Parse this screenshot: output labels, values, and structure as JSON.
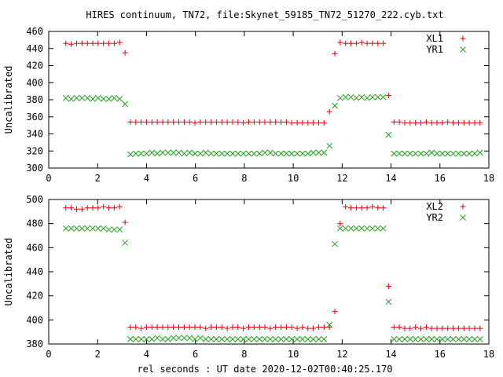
{
  "title": "HIRES continuum, TN72, file:Skynet_59185_TN72_51270_222.cyb.txt",
  "xlabel": "rel seconds : UT date 2020-12-02T00:40:25.170",
  "colors": {
    "series_a": "#e8000b",
    "series_b": "#1aa31a"
  },
  "chart_data": [
    {
      "type": "scatter",
      "ylabel": "Uncalibrated",
      "xlim": [
        0,
        18
      ],
      "ylim": [
        300,
        460
      ],
      "xticks": [
        "0",
        "2",
        "4",
        "6",
        "8",
        "10",
        "12",
        "14",
        "16",
        "18"
      ],
      "yticks": [
        "300",
        "320",
        "340",
        "360",
        "380",
        "400",
        "420",
        "440",
        "460"
      ],
      "legend_position": "top-right",
      "grid": false,
      "x": [
        0.7,
        0.92,
        1.14,
        1.36,
        1.58,
        1.8,
        2.02,
        2.24,
        2.46,
        2.68,
        2.9,
        3.12,
        3.34,
        3.56,
        3.78,
        4.0,
        4.22,
        4.44,
        4.66,
        4.88,
        5.1,
        5.32,
        5.54,
        5.76,
        5.98,
        6.2,
        6.42,
        6.64,
        6.86,
        7.08,
        7.3,
        7.52,
        7.74,
        7.96,
        8.18,
        8.4,
        8.62,
        8.84,
        9.06,
        9.28,
        9.5,
        9.72,
        9.94,
        10.16,
        10.38,
        10.6,
        10.82,
        11.04,
        11.26,
        11.48,
        11.7,
        11.92,
        12.14,
        12.36,
        12.58,
        12.8,
        13.02,
        13.24,
        13.46,
        13.68,
        13.9,
        14.12,
        14.34,
        14.56,
        14.78,
        15.0,
        15.22,
        15.44,
        15.66,
        15.88,
        16.1,
        16.32,
        16.54,
        16.76,
        16.98,
        17.2,
        17.42,
        17.64
      ],
      "series": [
        {
          "name": "XL1",
          "marker": "+",
          "values": [
            446,
            445,
            446,
            446,
            446,
            446,
            446,
            446,
            446,
            446,
            447,
            435,
            354,
            354,
            354,
            354,
            354,
            354,
            354,
            354,
            354,
            354,
            354,
            354,
            353,
            354,
            354,
            354,
            354,
            354,
            354,
            354,
            354,
            353,
            354,
            354,
            354,
            354,
            354,
            354,
            354,
            354,
            353,
            353,
            353,
            353,
            353,
            353,
            353,
            366,
            434,
            447,
            446,
            446,
            446,
            447,
            446,
            446,
            446,
            446,
            385,
            354,
            354,
            353,
            353,
            353,
            353,
            354,
            353,
            353,
            353,
            354,
            353,
            353,
            353,
            353,
            353,
            353
          ]
        },
        {
          "name": "YR1",
          "marker": "x",
          "values": [
            382,
            381,
            382,
            382,
            382,
            381,
            382,
            381,
            381,
            382,
            381,
            375,
            316,
            317,
            317,
            317,
            318,
            317,
            318,
            318,
            318,
            318,
            317,
            318,
            317,
            317,
            318,
            317,
            317,
            317,
            317,
            317,
            317,
            317,
            317,
            317,
            317,
            318,
            318,
            317,
            317,
            317,
            317,
            317,
            317,
            317,
            318,
            318,
            318,
            326,
            373,
            382,
            383,
            383,
            382,
            383,
            382,
            383,
            383,
            383,
            339,
            317,
            317,
            317,
            317,
            317,
            317,
            317,
            318,
            317,
            317,
            317,
            317,
            317,
            317,
            317,
            317,
            318
          ]
        }
      ]
    },
    {
      "type": "scatter",
      "ylabel": "Uncalibrated",
      "xlim": [
        0,
        18
      ],
      "ylim": [
        380,
        500
      ],
      "xticks": [
        "0",
        "2",
        "4",
        "6",
        "8",
        "10",
        "12",
        "14",
        "16",
        "18"
      ],
      "yticks": [
        "380",
        "400",
        "420",
        "440",
        "460",
        "480",
        "500"
      ],
      "legend_position": "top-right",
      "grid": false,
      "x": [
        0.7,
        0.92,
        1.14,
        1.36,
        1.58,
        1.8,
        2.02,
        2.24,
        2.46,
        2.68,
        2.9,
        3.12,
        3.34,
        3.56,
        3.78,
        4.0,
        4.22,
        4.44,
        4.66,
        4.88,
        5.1,
        5.32,
        5.54,
        5.76,
        5.98,
        6.2,
        6.42,
        6.64,
        6.86,
        7.08,
        7.3,
        7.52,
        7.74,
        7.96,
        8.18,
        8.4,
        8.62,
        8.84,
        9.06,
        9.28,
        9.5,
        9.72,
        9.94,
        10.16,
        10.38,
        10.6,
        10.82,
        11.04,
        11.26,
        11.48,
        11.7,
        11.92,
        12.14,
        12.36,
        12.58,
        12.8,
        13.02,
        13.24,
        13.46,
        13.68,
        13.9,
        14.12,
        14.34,
        14.56,
        14.78,
        15.0,
        15.22,
        15.44,
        15.66,
        15.88,
        16.1,
        16.32,
        16.54,
        16.76,
        16.98,
        17.2,
        17.42,
        17.64
      ],
      "series": [
        {
          "name": "XL2",
          "marker": "+",
          "values": [
            493,
            493,
            492,
            492,
            493,
            493,
            493,
            494,
            493,
            493,
            494,
            481,
            394,
            394,
            393,
            394,
            394,
            394,
            394,
            394,
            394,
            394,
            394,
            394,
            394,
            394,
            393,
            394,
            394,
            394,
            393,
            394,
            394,
            393,
            394,
            394,
            394,
            394,
            393,
            394,
            394,
            394,
            394,
            393,
            394,
            393,
            393,
            394,
            394,
            394,
            407,
            480,
            494,
            493,
            493,
            493,
            493,
            494,
            493,
            493,
            428,
            394,
            394,
            393,
            393,
            394,
            393,
            394,
            393,
            393,
            393,
            393,
            393,
            393,
            393,
            393,
            393,
            393
          ]
        },
        {
          "name": "YR2",
          "marker": "x",
          "values": [
            476,
            476,
            476,
            476,
            476,
            476,
            476,
            476,
            475,
            475,
            475,
            464,
            384,
            384,
            384,
            384,
            384,
            385,
            384,
            384,
            385,
            385,
            385,
            385,
            384,
            385,
            384,
            384,
            384,
            384,
            384,
            384,
            384,
            384,
            384,
            384,
            384,
            384,
            384,
            384,
            384,
            384,
            384,
            384,
            384,
            384,
            384,
            384,
            384,
            396,
            463,
            476,
            476,
            476,
            476,
            476,
            476,
            476,
            476,
            476,
            415,
            384,
            384,
            384,
            384,
            384,
            384,
            384,
            384,
            384,
            384,
            384,
            384,
            384,
            384,
            384,
            384,
            384
          ]
        }
      ]
    }
  ]
}
